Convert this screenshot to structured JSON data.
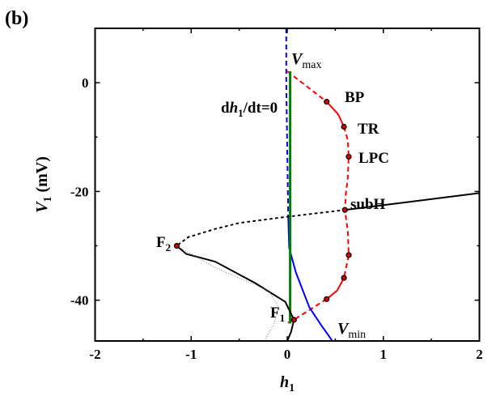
{
  "panel_label": "(b)",
  "chart_data": {
    "type": "line",
    "xlabel": {
      "main": "h",
      "sub": "1"
    },
    "ylabel": {
      "main": "V",
      "sub": "1",
      "unit": " (mV)"
    },
    "xlim": [
      -2,
      2
    ],
    "ylim": [
      -47.5,
      10
    ],
    "xticks": [
      -2,
      -1,
      0,
      1,
      2
    ],
    "yticks": [
      0,
      -20,
      -40
    ],
    "xtick_labels": [
      "-2",
      "-1",
      "0",
      "1",
      "2"
    ],
    "ytick_labels": [
      "0",
      "-20",
      "-40"
    ],
    "grid": false,
    "colors": {
      "cycle": "#ff0000",
      "extrema": "#0000ff",
      "nullcline": "#008000",
      "equilibrium": "#000000",
      "aux": "#808080"
    },
    "series": [
      {
        "role": "limit-cycle-unstable-upper",
        "color": "#ff0000",
        "style": "dashed",
        "points": [
          [
            0.0,
            2.1
          ],
          [
            0.41,
            -3.5
          ]
        ]
      },
      {
        "role": "limit-cycle-stable-upper",
        "color": "#ff0000",
        "style": "solid",
        "points": [
          [
            0.41,
            -3.5
          ],
          [
            0.53,
            -5.8
          ],
          [
            0.59,
            -8.1
          ]
        ]
      },
      {
        "role": "limit-cycle-unstable-mid",
        "color": "#ff0000",
        "style": "dashed",
        "points": [
          [
            0.59,
            -8.1
          ],
          [
            0.63,
            -10.6
          ],
          [
            0.64,
            -13.6
          ],
          [
            0.63,
            -17.5
          ],
          [
            0.61,
            -20.5
          ],
          [
            0.6,
            -23.4
          ],
          [
            0.63,
            -27.3
          ],
          [
            0.64,
            -31.7
          ],
          [
            0.59,
            -35.9
          ]
        ]
      },
      {
        "role": "limit-cycle-stable-lower",
        "color": "#ff0000",
        "style": "solid",
        "points": [
          [
            0.59,
            -35.9
          ],
          [
            0.52,
            -38.2
          ],
          [
            0.41,
            -39.8
          ]
        ]
      },
      {
        "role": "limit-cycle-unstable-lower",
        "color": "#ff0000",
        "style": "dashed",
        "points": [
          [
            0.41,
            -39.8
          ],
          [
            0.07,
            -43.6
          ],
          [
            0.0,
            -44.2
          ]
        ]
      },
      {
        "role": "vmax-branch",
        "color": "#0000ff",
        "style": "dashed",
        "points": [
          [
            -0.01,
            10
          ],
          [
            -0.01,
            0
          ],
          [
            0.0,
            -12
          ],
          [
            0.01,
            -24.5
          ]
        ]
      },
      {
        "role": "vmin-branch",
        "color": "#0000ff",
        "style": "solid",
        "points": [
          [
            0.01,
            -24.5
          ],
          [
            0.02,
            -30.4
          ],
          [
            0.09,
            -34.9
          ],
          [
            0.23,
            -41.3
          ],
          [
            0.35,
            -44.5
          ],
          [
            0.47,
            -47.5
          ]
        ]
      },
      {
        "role": "nullcline",
        "color": "#008000",
        "style": "solid",
        "points": [
          [
            0.03,
            2.1
          ],
          [
            0.03,
            -44.3
          ]
        ]
      },
      {
        "role": "equilibrium-stable-right",
        "color": "#000000",
        "style": "solid",
        "points": [
          [
            0.6,
            -23.4
          ],
          [
            2.0,
            -20.3
          ]
        ]
      },
      {
        "role": "equilibrium-unstable",
        "color": "#000000",
        "style": "dotted",
        "points": [
          [
            0.6,
            -23.4
          ],
          [
            -0.02,
            -24.7
          ],
          [
            -0.5,
            -25.8
          ],
          [
            -0.75,
            -26.9
          ],
          [
            -1.03,
            -28.4
          ],
          [
            -1.15,
            -30.0
          ]
        ]
      },
      {
        "role": "equilibrium-stable-lower",
        "color": "#000000",
        "style": "solid",
        "points": [
          [
            -1.15,
            -30.0
          ],
          [
            -1.05,
            -31.5
          ],
          [
            -0.75,
            -32.9
          ],
          [
            -0.33,
            -36.9
          ],
          [
            -0.02,
            -40.3
          ],
          [
            0.07,
            -43.6
          ],
          [
            0.04,
            -45.8
          ],
          [
            0.0,
            -47.5
          ]
        ]
      },
      {
        "role": "auxiliary",
        "color": "#808080",
        "style": "thin-dotted",
        "points": [
          [
            -1.15,
            -30.0
          ],
          [
            -0.75,
            -34.0
          ],
          [
            -0.19,
            -38.3
          ],
          [
            -0.09,
            -41.3
          ],
          [
            -0.14,
            -44.5
          ],
          [
            -0.24,
            -47.5
          ]
        ]
      }
    ],
    "special_points": [
      {
        "label": "BP",
        "h": 0.41,
        "v": -3.5
      },
      {
        "label": "TR",
        "h": 0.59,
        "v": -8.1
      },
      {
        "label": "LPC",
        "h": 0.64,
        "v": -13.6
      },
      {
        "label": "subH",
        "h": 0.6,
        "v": -23.4
      },
      {
        "label": "",
        "h": 0.64,
        "v": -31.7
      },
      {
        "label": "",
        "h": 0.59,
        "v": -35.9
      },
      {
        "label": "",
        "h": 0.41,
        "v": -39.8
      },
      {
        "label": "F1",
        "h": 0.07,
        "v": -43.6
      },
      {
        "label": "F2",
        "h": -1.15,
        "v": -30.0
      }
    ],
    "annotations": {
      "vmax": {
        "main": "V",
        "sub": "max"
      },
      "vmin": {
        "main": "V",
        "sub": "min"
      },
      "bp": "BP",
      "tr": "TR",
      "lpc": "LPC",
      "subh": "subH",
      "f1": {
        "main": "F",
        "sub": "1"
      },
      "f2": {
        "main": "F",
        "sub": "2"
      },
      "nullcline": {
        "pre": "d",
        "var": "h",
        "sub": "1",
        "post": "/dt=0"
      }
    }
  }
}
